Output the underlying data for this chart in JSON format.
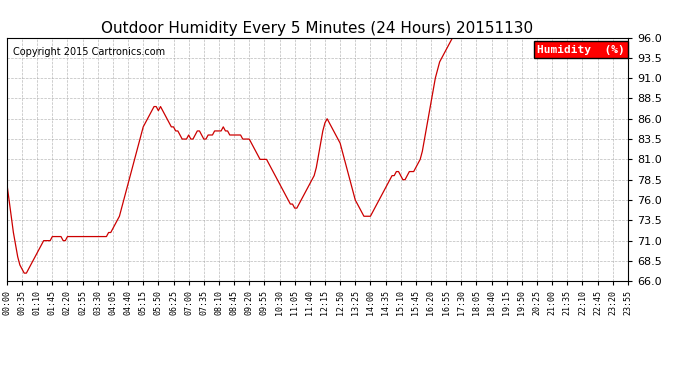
{
  "title": "Outdoor Humidity Every 5 Minutes (24 Hours) 20151130",
  "copyright": "Copyright 2015 Cartronics.com",
  "legend_label": "Humidity  (%)",
  "line_color": "#cc0000",
  "background_color": "#ffffff",
  "grid_color": "#aaaaaa",
  "ylim": [
    66.0,
    96.0
  ],
  "yticks": [
    66.0,
    68.5,
    71.0,
    73.5,
    76.0,
    78.5,
    81.0,
    83.5,
    86.0,
    88.5,
    91.0,
    93.5,
    96.0
  ],
  "xtick_labels": [
    "00:00",
    "00:35",
    "01:10",
    "01:45",
    "02:20",
    "02:55",
    "03:30",
    "04:05",
    "04:40",
    "05:15",
    "05:50",
    "06:25",
    "07:00",
    "07:35",
    "08:10",
    "08:45",
    "09:20",
    "09:55",
    "10:30",
    "11:05",
    "11:40",
    "12:15",
    "12:50",
    "13:25",
    "14:00",
    "14:35",
    "15:10",
    "15:45",
    "16:20",
    "16:55",
    "17:30",
    "18:05",
    "18:40",
    "19:15",
    "19:50",
    "20:25",
    "21:00",
    "21:35",
    "22:10",
    "22:45",
    "23:20",
    "23:55"
  ],
  "humidity_values": [
    78.0,
    76.0,
    74.0,
    72.0,
    70.5,
    69.0,
    68.0,
    67.5,
    67.0,
    67.0,
    67.5,
    68.0,
    68.5,
    69.0,
    69.5,
    70.0,
    70.5,
    71.0,
    71.0,
    71.0,
    71.0,
    71.5,
    71.5,
    71.5,
    71.5,
    71.5,
    71.0,
    71.0,
    71.5,
    71.5,
    71.5,
    71.5,
    71.5,
    71.5,
    71.5,
    71.5,
    71.5,
    71.5,
    71.5,
    71.5,
    71.5,
    71.5,
    71.5,
    71.5,
    71.5,
    71.5,
    71.5,
    72.0,
    72.0,
    72.5,
    73.0,
    73.5,
    74.0,
    75.0,
    76.0,
    77.0,
    78.0,
    79.0,
    80.0,
    81.0,
    82.0,
    83.0,
    84.0,
    85.0,
    85.5,
    86.0,
    86.5,
    87.0,
    87.5,
    87.5,
    87.0,
    87.5,
    87.0,
    86.5,
    86.0,
    85.5,
    85.0,
    85.0,
    84.5,
    84.5,
    84.0,
    83.5,
    83.5,
    83.5,
    84.0,
    83.5,
    83.5,
    84.0,
    84.5,
    84.5,
    84.0,
    83.5,
    83.5,
    84.0,
    84.0,
    84.0,
    84.5,
    84.5,
    84.5,
    84.5,
    85.0,
    84.5,
    84.5,
    84.0,
    84.0,
    84.0,
    84.0,
    84.0,
    84.0,
    83.5,
    83.5,
    83.5,
    83.5,
    83.0,
    82.5,
    82.0,
    81.5,
    81.0,
    81.0,
    81.0,
    81.0,
    80.5,
    80.0,
    79.5,
    79.0,
    78.5,
    78.0,
    77.5,
    77.0,
    76.5,
    76.0,
    75.5,
    75.5,
    75.0,
    75.0,
    75.5,
    76.0,
    76.5,
    77.0,
    77.5,
    78.0,
    78.5,
    79.0,
    80.0,
    81.5,
    83.0,
    84.5,
    85.5,
    86.0,
    85.5,
    85.0,
    84.5,
    84.0,
    83.5,
    83.0,
    82.0,
    81.0,
    80.0,
    79.0,
    78.0,
    77.0,
    76.0,
    75.5,
    75.0,
    74.5,
    74.0,
    74.0,
    74.0,
    74.0,
    74.5,
    75.0,
    75.5,
    76.0,
    76.5,
    77.0,
    77.5,
    78.0,
    78.5,
    79.0,
    79.0,
    79.5,
    79.5,
    79.0,
    78.5,
    78.5,
    79.0,
    79.5,
    79.5,
    79.5,
    80.0,
    80.5,
    81.0,
    82.0,
    83.5,
    85.0,
    86.5,
    88.0,
    89.5,
    91.0,
    92.0,
    93.0,
    93.5,
    94.0,
    94.5,
    95.0,
    95.5,
    96.0,
    96.0,
    96.0,
    96.0,
    96.0,
    96.0,
    96.0,
    96.0,
    96.0,
    96.0,
    96.0,
    96.0,
    96.0,
    96.0,
    96.0,
    96.0,
    96.0,
    96.0,
    96.0,
    96.0,
    96.0,
    96.0,
    96.0,
    96.0,
    96.0,
    96.0,
    96.0,
    96.0,
    96.0,
    96.0,
    96.0,
    96.0,
    96.0,
    96.0,
    96.0,
    96.0,
    96.0,
    96.0,
    96.0,
    96.0,
    96.0,
    96.0,
    96.0,
    96.0,
    96.0,
    96.0,
    96.0,
    96.0,
    96.0,
    96.0,
    96.0,
    96.0,
    96.0,
    96.0,
    96.0,
    96.0,
    96.0,
    96.0,
    96.0,
    96.0,
    96.0,
    96.0,
    96.0,
    96.0,
    96.0,
    96.0,
    96.0,
    96.0,
    96.0,
    96.0,
    96.0,
    96.0,
    96.0,
    96.0,
    96.0,
    96.0,
    96.0,
    96.0,
    96.0,
    96.0,
    96.0,
    96.0
  ]
}
